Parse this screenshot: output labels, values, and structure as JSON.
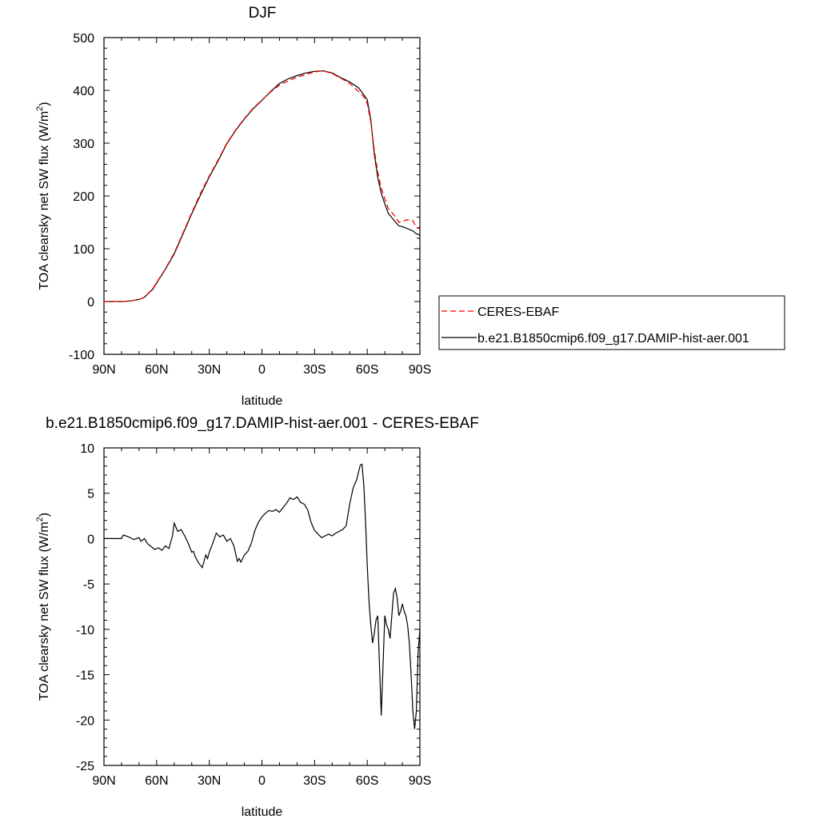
{
  "colors": {
    "model": "#000000",
    "obs": "#ff0000",
    "frame": "#000000"
  },
  "chart_data": [
    {
      "type": "line",
      "title": "DJF",
      "xlabel": "latitude",
      "ylabel": "TOA clearsky net SW flux (W/m",
      "ylabel_sup": "2",
      "ylabel_close": ")",
      "xlim": [
        -90,
        90
      ],
      "ylim": [
        -100,
        500
      ],
      "x_tick_values": [
        -90,
        -60,
        -30,
        0,
        30,
        60,
        90
      ],
      "x_tick_labels": [
        "90N",
        "60N",
        "30N",
        "0",
        "30S",
        "60S",
        "90S"
      ],
      "y_tick_values": [
        -100,
        0,
        100,
        200,
        300,
        400,
        500
      ],
      "y_tick_labels": [
        "-100",
        "0",
        "100",
        "200",
        "300",
        "400",
        "500"
      ],
      "legend_position": "right",
      "series": [
        {
          "name": "CERES-EBAF",
          "style": "dashed",
          "x": [
            -90,
            -80,
            -75,
            -70,
            -67,
            -62,
            -60,
            -55,
            -50,
            -45,
            -40,
            -35,
            -30,
            -25,
            -20,
            -15,
            -10,
            -5,
            0,
            5,
            10,
            15,
            20,
            25,
            30,
            35,
            40,
            45,
            50,
            55,
            58,
            60,
            62,
            64,
            66,
            68,
            70,
            72,
            75,
            78,
            80,
            83,
            86,
            88,
            90
          ],
          "y": [
            0,
            0,
            1,
            4,
            8,
            25,
            36,
            62,
            92,
            130,
            168,
            205,
            238,
            268,
            300,
            325,
            347,
            366,
            382,
            397,
            410,
            418,
            425,
            430,
            435,
            437,
            432,
            423,
            413,
            398,
            388,
            375,
            340,
            288,
            245,
            215,
            195,
            176,
            165,
            150,
            152,
            155,
            153,
            140,
            138
          ]
        },
        {
          "name": "b.e21.B1850cmip6.f09_g17.DAMIP-hist-aer.001",
          "style": "solid",
          "x": [
            -90,
            -80,
            -75,
            -70,
            -67,
            -62,
            -60,
            -55,
            -50,
            -45,
            -40,
            -35,
            -30,
            -25,
            -20,
            -15,
            -10,
            -5,
            0,
            5,
            10,
            15,
            20,
            25,
            30,
            35,
            40,
            45,
            50,
            55,
            58,
            60,
            62,
            64,
            66,
            68,
            70,
            72,
            75,
            78,
            80,
            83,
            86,
            88,
            90
          ],
          "y": [
            0,
            0,
            1,
            4,
            8,
            24,
            35,
            61,
            90,
            128,
            166,
            202,
            236,
            266,
            299,
            324,
            346,
            365,
            381,
            398,
            413,
            422,
            428,
            433,
            436,
            437,
            433,
            424,
            416,
            405,
            392,
            382,
            345,
            280,
            235,
            205,
            185,
            167,
            155,
            143,
            142,
            138,
            134,
            128,
            126
          ]
        }
      ]
    },
    {
      "type": "line",
      "title": "b.e21.B1850cmip6.f09_g17.DAMIP-hist-aer.001 - CERES-EBAF",
      "xlabel": "latitude",
      "ylabel": "TOA clearsky net SW flux (W/m",
      "ylabel_sup": "2",
      "ylabel_close": ")",
      "xlim": [
        -90,
        90
      ],
      "ylim": [
        -25,
        10
      ],
      "x_tick_values": [
        -90,
        -60,
        -30,
        0,
        30,
        60,
        90
      ],
      "x_tick_labels": [
        "90N",
        "60N",
        "30N",
        "0",
        "30S",
        "60S",
        "90S"
      ],
      "y_tick_values": [
        -25,
        -20,
        -15,
        -10,
        -5,
        0,
        5,
        10
      ],
      "y_tick_labels": [
        "-25",
        "-20",
        "-15",
        "-10",
        "-5",
        "0",
        "5",
        "10"
      ],
      "series": [
        {
          "name": "",
          "style": "solid",
          "x": [
            -90,
            -80,
            -79,
            -76,
            -73,
            -70,
            -69,
            -67,
            -65,
            -63,
            -61,
            -59,
            -57,
            -55,
            -53,
            -52,
            -51,
            -50,
            -48,
            -46,
            -44,
            -42,
            -40,
            -39,
            -38,
            -36,
            -34,
            -32,
            -31,
            -30,
            -28,
            -26,
            -24,
            -22,
            -20,
            -18,
            -16,
            -14,
            -13,
            -12,
            -10,
            -8,
            -6,
            -4,
            -2,
            0,
            2,
            4,
            6,
            8,
            10,
            12,
            14,
            16,
            18,
            20,
            22,
            24,
            26,
            28,
            30,
            32,
            34,
            36,
            38,
            40,
            42,
            44,
            46,
            48,
            50,
            52,
            54,
            56,
            57,
            58,
            59,
            60,
            61,
            62,
            63,
            64,
            65,
            66,
            67,
            68,
            69,
            70,
            71,
            72,
            73,
            74,
            75,
            76,
            77,
            78,
            79,
            80,
            81,
            82,
            83,
            84,
            85,
            86,
            87,
            88,
            89,
            90
          ],
          "y": [
            0,
            0,
            0.4,
            0.2,
            -0.1,
            0.1,
            -0.3,
            0,
            -0.6,
            -0.9,
            -1.2,
            -1.0,
            -1.3,
            -0.8,
            -1.1,
            -0.4,
            0.3,
            1.7,
            0.8,
            1.0,
            0.3,
            -0.5,
            -1.5,
            -1.4,
            -2.0,
            -2.7,
            -3.2,
            -1.8,
            -2.2,
            -1.5,
            -0.5,
            0.6,
            0.2,
            0.4,
            -0.3,
            0,
            -0.8,
            -2.5,
            -2.2,
            -2.6,
            -1.8,
            -1.4,
            -0.5,
            0.9,
            1.8,
            2.4,
            2.8,
            3.1,
            3.0,
            3.2,
            2.9,
            3.4,
            3.9,
            4.5,
            4.3,
            4.6,
            4.0,
            3.8,
            3.2,
            1.8,
            0.9,
            0.5,
            0.1,
            0.3,
            0.5,
            0.3,
            0.6,
            0.8,
            1.0,
            1.4,
            3.8,
            5.6,
            6.5,
            8.1,
            8.2,
            6.0,
            2.0,
            -3.0,
            -7.0,
            -9.5,
            -11.5,
            -10.5,
            -9.0,
            -8.5,
            -14.0,
            -19.5,
            -14.0,
            -8.5,
            -9.5,
            -10.0,
            -11.0,
            -8.5,
            -6.0,
            -5.5,
            -6.5,
            -8.5,
            -8.0,
            -7.2,
            -8.0,
            -8.5,
            -9.5,
            -11.5,
            -15.0,
            -19.0,
            -21.0,
            -19.0,
            -12.5,
            -10.0
          ]
        }
      ]
    }
  ]
}
